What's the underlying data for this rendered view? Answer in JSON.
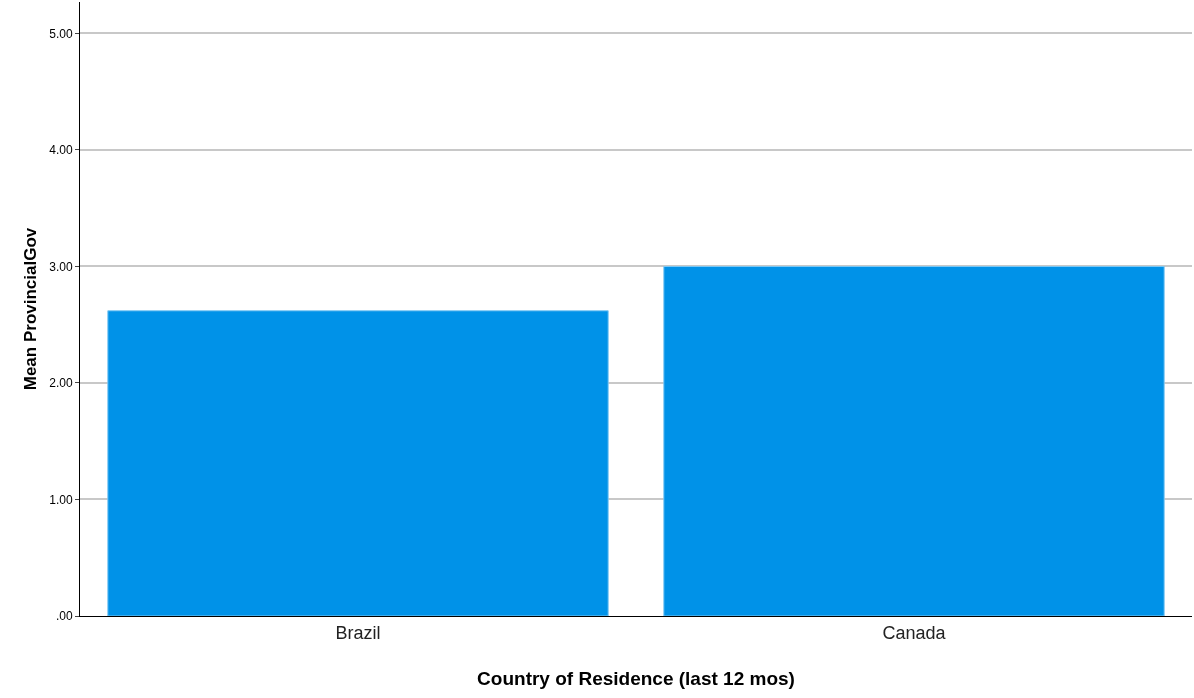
{
  "chart_data": {
    "type": "bar",
    "xlabel": "Country of Residence (last 12 mos)",
    "ylabel": "Mean ProvincialGov",
    "categories": [
      "Brazil",
      "Canada"
    ],
    "values": [
      2.62,
      3.0
    ],
    "color": "#0092e8",
    "ylim": [
      0,
      5.27
    ],
    "yticks": [
      {
        "value": 0,
        "label": ".00"
      },
      {
        "value": 1,
        "label": "1.00"
      },
      {
        "value": 2,
        "label": "2.00"
      },
      {
        "value": 3,
        "label": "3.00"
      },
      {
        "value": 4,
        "label": "4.00"
      },
      {
        "value": 5,
        "label": "5.00"
      }
    ],
    "grid": "y",
    "legend": false
  }
}
